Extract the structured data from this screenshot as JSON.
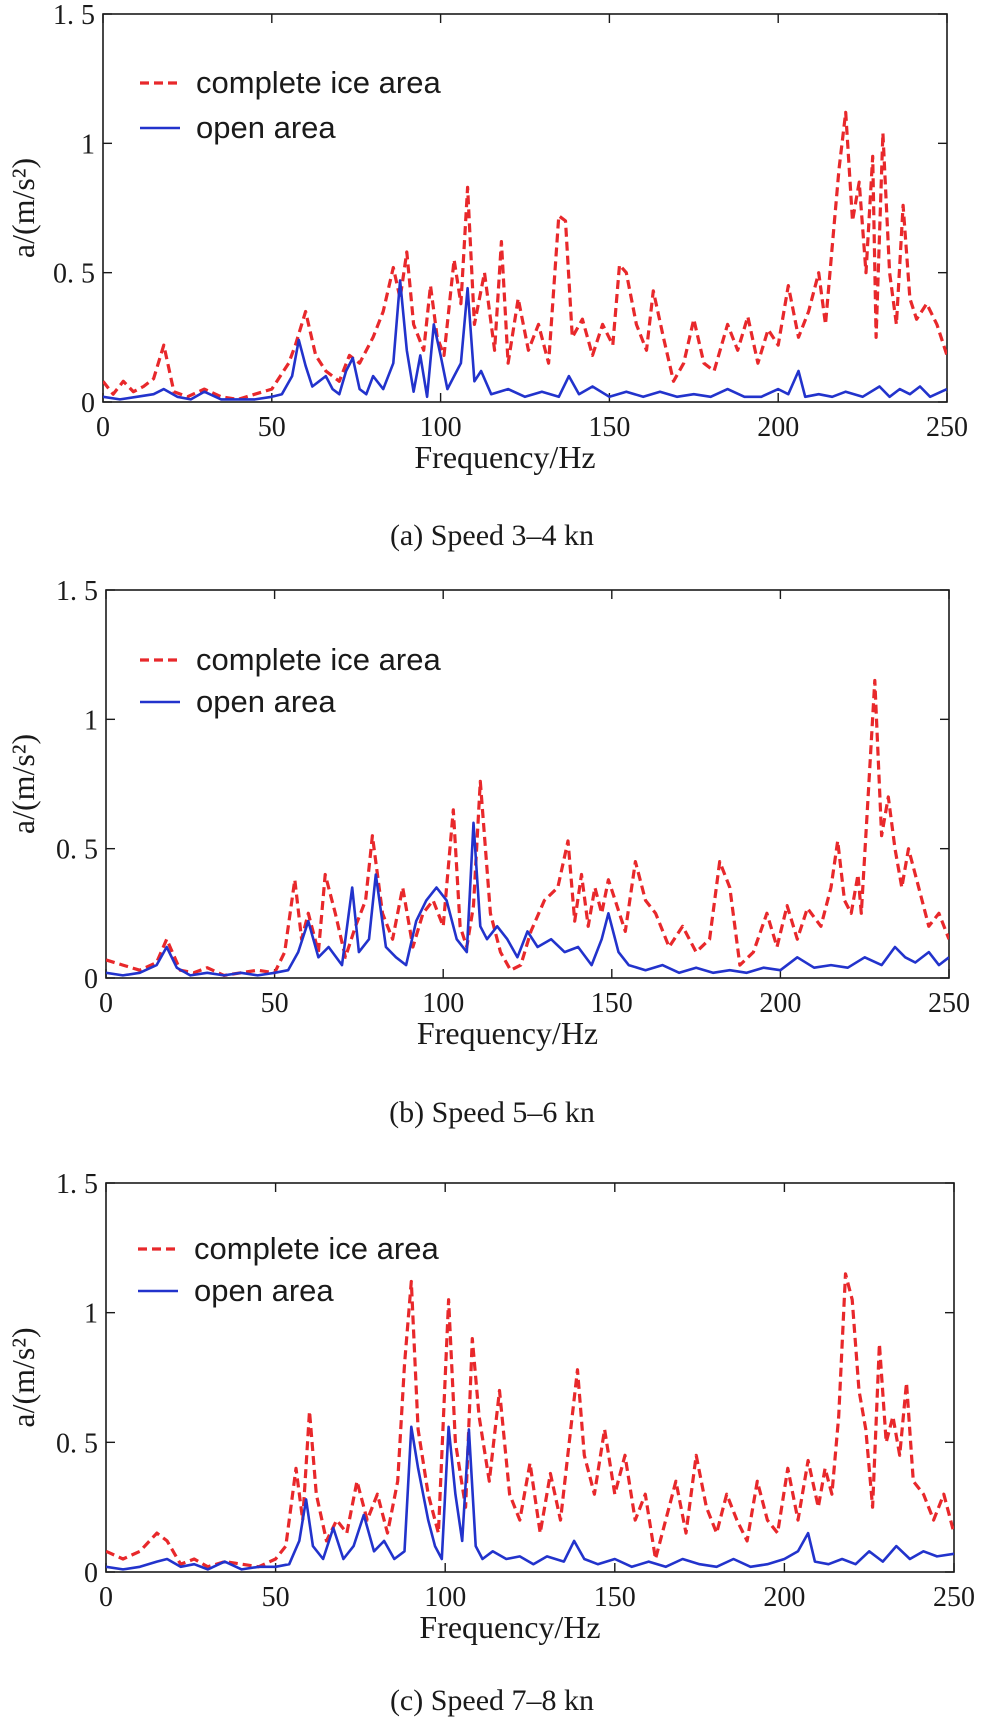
{
  "figure": {
    "panel_count": 3
  },
  "chart_data": [
    {
      "type": "line",
      "caption": "(a) Speed 3–4 kn",
      "xlabel": "Frequency/Hz",
      "ylabel": "a/(m/s²)",
      "xlim": [
        0,
        250
      ],
      "ylim": [
        0,
        1.5
      ],
      "xticks": [
        0,
        50,
        100,
        150,
        200,
        250
      ],
      "yticks": [
        0,
        0.5,
        1,
        1.5
      ],
      "ytick_labels": [
        "0",
        "0. 5",
        "1",
        "1. 5"
      ],
      "grid": false,
      "legend_position": "top-left",
      "series": [
        {
          "name": "complete ice area",
          "color": "#e8282b",
          "style": "dashed",
          "x": [
            0,
            3,
            6,
            9,
            12,
            15,
            18,
            21,
            25,
            30,
            35,
            40,
            45,
            50,
            55,
            57,
            60,
            63,
            66,
            70,
            73,
            76,
            80,
            83,
            86,
            88,
            90,
            92,
            95,
            97,
            99,
            101,
            104,
            106,
            108,
            110,
            113,
            116,
            118,
            120,
            123,
            126,
            129,
            132,
            135,
            137,
            139,
            142,
            145,
            148,
            151,
            153,
            155,
            158,
            161,
            163,
            166,
            169,
            172,
            175,
            178,
            181,
            185,
            188,
            191,
            194,
            197,
            200,
            203,
            206,
            209,
            212,
            214,
            216,
            218,
            220,
            222,
            224,
            226,
            228,
            229,
            231,
            233,
            235,
            237,
            239,
            241,
            244,
            247,
            250
          ],
          "values": [
            0.08,
            0.03,
            0.08,
            0.04,
            0.06,
            0.09,
            0.22,
            0.04,
            0.02,
            0.05,
            0.02,
            0.01,
            0.03,
            0.05,
            0.15,
            0.22,
            0.35,
            0.18,
            0.12,
            0.08,
            0.18,
            0.15,
            0.25,
            0.35,
            0.52,
            0.4,
            0.58,
            0.3,
            0.2,
            0.45,
            0.25,
            0.18,
            0.55,
            0.38,
            0.83,
            0.3,
            0.5,
            0.2,
            0.62,
            0.15,
            0.4,
            0.2,
            0.3,
            0.15,
            0.72,
            0.7,
            0.25,
            0.32,
            0.18,
            0.3,
            0.22,
            0.53,
            0.5,
            0.3,
            0.2,
            0.43,
            0.25,
            0.08,
            0.15,
            0.32,
            0.15,
            0.12,
            0.3,
            0.2,
            0.33,
            0.15,
            0.28,
            0.22,
            0.45,
            0.25,
            0.35,
            0.5,
            0.3,
            0.6,
            0.9,
            1.12,
            0.7,
            0.85,
            0.5,
            0.95,
            0.25,
            1.04,
            0.5,
            0.3,
            0.76,
            0.4,
            0.32,
            0.38,
            0.3,
            0.18
          ]
        },
        {
          "name": "open area",
          "color": "#2233cc",
          "style": "solid",
          "x": [
            0,
            5,
            10,
            15,
            18,
            22,
            26,
            30,
            35,
            40,
            45,
            50,
            53,
            56,
            58,
            60,
            62,
            64,
            66,
            68,
            70,
            72,
            74,
            76,
            78,
            80,
            83,
            86,
            88,
            90,
            92,
            94,
            96,
            98,
            100,
            102,
            104,
            106,
            108,
            110,
            112,
            115,
            120,
            125,
            130,
            135,
            138,
            141,
            145,
            150,
            155,
            160,
            165,
            170,
            175,
            180,
            185,
            190,
            195,
            200,
            203,
            206,
            208,
            212,
            216,
            220,
            225,
            230,
            233,
            236,
            239,
            242,
            245,
            250
          ],
          "values": [
            0.02,
            0.01,
            0.02,
            0.03,
            0.05,
            0.02,
            0.01,
            0.04,
            0.01,
            0.01,
            0.01,
            0.02,
            0.03,
            0.1,
            0.24,
            0.14,
            0.06,
            0.08,
            0.1,
            0.05,
            0.03,
            0.12,
            0.17,
            0.05,
            0.03,
            0.1,
            0.05,
            0.15,
            0.47,
            0.2,
            0.04,
            0.18,
            0.02,
            0.3,
            0.18,
            0.05,
            0.1,
            0.15,
            0.44,
            0.08,
            0.12,
            0.03,
            0.05,
            0.02,
            0.04,
            0.02,
            0.1,
            0.03,
            0.06,
            0.02,
            0.04,
            0.02,
            0.04,
            0.02,
            0.03,
            0.02,
            0.05,
            0.02,
            0.02,
            0.05,
            0.03,
            0.12,
            0.02,
            0.03,
            0.02,
            0.04,
            0.02,
            0.06,
            0.02,
            0.05,
            0.03,
            0.06,
            0.02,
            0.05
          ]
        }
      ]
    },
    {
      "type": "line",
      "caption": "(b) Speed 5–6 kn",
      "xlabel": "Frequency/Hz",
      "ylabel": "a/(m/s²)",
      "xlim": [
        0,
        250
      ],
      "ylim": [
        0,
        1.5
      ],
      "xticks": [
        0,
        50,
        100,
        150,
        200,
        250
      ],
      "yticks": [
        0,
        0.5,
        1,
        1.5
      ],
      "ytick_labels": [
        "0",
        "0. 5",
        "1",
        "1. 5"
      ],
      "grid": false,
      "legend_position": "top-left",
      "series": [
        {
          "name": "complete ice area",
          "color": "#e8282b",
          "style": "dashed",
          "x": [
            0,
            5,
            10,
            15,
            18,
            22,
            26,
            30,
            35,
            40,
            45,
            50,
            53,
            56,
            58,
            60,
            63,
            65,
            68,
            71,
            74,
            77,
            79,
            82,
            85,
            88,
            91,
            94,
            97,
            100,
            103,
            105,
            107,
            109,
            111,
            114,
            117,
            120,
            123,
            126,
            130,
            134,
            137,
            139,
            141,
            143,
            145,
            147,
            149,
            151,
            154,
            157,
            160,
            163,
            167,
            171,
            175,
            179,
            182,
            185,
            188,
            192,
            196,
            199,
            202,
            205,
            208,
            212,
            215,
            217,
            219,
            221,
            223,
            224,
            226,
            228,
            230,
            232,
            234,
            236,
            238,
            241,
            244,
            247,
            250
          ],
          "values": [
            0.07,
            0.05,
            0.03,
            0.06,
            0.15,
            0.03,
            0.02,
            0.04,
            0.01,
            0.02,
            0.03,
            0.02,
            0.1,
            0.38,
            0.15,
            0.25,
            0.1,
            0.4,
            0.25,
            0.08,
            0.2,
            0.3,
            0.55,
            0.25,
            0.15,
            0.35,
            0.12,
            0.25,
            0.3,
            0.2,
            0.65,
            0.2,
            0.12,
            0.28,
            0.76,
            0.25,
            0.1,
            0.03,
            0.05,
            0.18,
            0.3,
            0.35,
            0.53,
            0.22,
            0.4,
            0.2,
            0.35,
            0.25,
            0.38,
            0.3,
            0.18,
            0.45,
            0.3,
            0.25,
            0.12,
            0.2,
            0.1,
            0.15,
            0.45,
            0.35,
            0.05,
            0.1,
            0.25,
            0.12,
            0.28,
            0.15,
            0.27,
            0.2,
            0.35,
            0.53,
            0.3,
            0.25,
            0.4,
            0.25,
            0.7,
            1.15,
            0.55,
            0.7,
            0.5,
            0.35,
            0.5,
            0.35,
            0.2,
            0.25,
            0.15
          ]
        },
        {
          "name": "open area",
          "color": "#2233cc",
          "style": "solid",
          "x": [
            0,
            5,
            10,
            15,
            18,
            21,
            25,
            30,
            35,
            40,
            45,
            50,
            54,
            57,
            60,
            63,
            66,
            70,
            73,
            75,
            78,
            80,
            83,
            86,
            89,
            92,
            95,
            98,
            101,
            104,
            107,
            109,
            111,
            113,
            116,
            119,
            122,
            125,
            128,
            132,
            136,
            140,
            144,
            147,
            149,
            152,
            155,
            160,
            165,
            170,
            175,
            180,
            185,
            190,
            195,
            200,
            205,
            210,
            215,
            220,
            225,
            230,
            234,
            237,
            240,
            244,
            247,
            250
          ],
          "values": [
            0.02,
            0.01,
            0.02,
            0.05,
            0.12,
            0.04,
            0.01,
            0.02,
            0.01,
            0.02,
            0.01,
            0.02,
            0.03,
            0.1,
            0.22,
            0.08,
            0.12,
            0.05,
            0.35,
            0.1,
            0.15,
            0.4,
            0.12,
            0.08,
            0.05,
            0.22,
            0.3,
            0.35,
            0.3,
            0.15,
            0.1,
            0.6,
            0.2,
            0.15,
            0.2,
            0.15,
            0.08,
            0.18,
            0.12,
            0.15,
            0.1,
            0.12,
            0.05,
            0.15,
            0.25,
            0.1,
            0.05,
            0.03,
            0.05,
            0.02,
            0.04,
            0.02,
            0.03,
            0.02,
            0.04,
            0.03,
            0.08,
            0.04,
            0.05,
            0.04,
            0.08,
            0.05,
            0.12,
            0.08,
            0.06,
            0.1,
            0.05,
            0.08
          ]
        }
      ]
    },
    {
      "type": "line",
      "caption": "(c) Speed 7–8 kn",
      "xlabel": "Frequency/Hz",
      "ylabel": "a/(m/s²)",
      "xlim": [
        0,
        250
      ],
      "ylim": [
        0,
        1.5
      ],
      "xticks": [
        0,
        50,
        100,
        150,
        200,
        250
      ],
      "yticks": [
        0,
        0.5,
        1,
        1.5
      ],
      "ytick_labels": [
        "0",
        "0. 5",
        "1",
        "1. 5"
      ],
      "grid": false,
      "legend_position": "top-left",
      "series": [
        {
          "name": "complete ice area",
          "color": "#e8282b",
          "style": "dashed",
          "x": [
            0,
            5,
            10,
            15,
            18,
            22,
            26,
            30,
            35,
            40,
            45,
            50,
            53,
            56,
            58,
            60,
            62,
            65,
            68,
            71,
            74,
            77,
            80,
            83,
            86,
            88,
            90,
            92,
            95,
            98,
            101,
            103,
            106,
            108,
            110,
            113,
            116,
            119,
            122,
            125,
            128,
            131,
            134,
            137,
            139,
            141,
            144,
            147,
            150,
            153,
            156,
            159,
            162,
            165,
            168,
            171,
            174,
            177,
            180,
            183,
            186,
            189,
            192,
            195,
            198,
            201,
            204,
            207,
            210,
            212,
            214,
            216,
            218,
            220,
            222,
            224,
            226,
            228,
            230,
            232,
            234,
            236,
            238,
            241,
            244,
            247,
            250
          ],
          "values": [
            0.08,
            0.05,
            0.08,
            0.15,
            0.12,
            0.03,
            0.05,
            0.02,
            0.04,
            0.03,
            0.02,
            0.05,
            0.1,
            0.4,
            0.2,
            0.62,
            0.3,
            0.12,
            0.2,
            0.15,
            0.35,
            0.2,
            0.3,
            0.15,
            0.35,
            0.8,
            1.12,
            0.55,
            0.3,
            0.15,
            1.05,
            0.5,
            0.25,
            0.9,
            0.6,
            0.35,
            0.7,
            0.3,
            0.2,
            0.42,
            0.15,
            0.38,
            0.2,
            0.55,
            0.78,
            0.45,
            0.3,
            0.55,
            0.3,
            0.45,
            0.2,
            0.3,
            0.05,
            0.2,
            0.35,
            0.15,
            0.45,
            0.25,
            0.15,
            0.3,
            0.2,
            0.12,
            0.35,
            0.2,
            0.15,
            0.4,
            0.2,
            0.43,
            0.25,
            0.4,
            0.3,
            0.6,
            1.15,
            1.05,
            0.7,
            0.55,
            0.25,
            0.88,
            0.5,
            0.6,
            0.45,
            0.73,
            0.35,
            0.3,
            0.2,
            0.3,
            0.15
          ]
        },
        {
          "name": "open area",
          "color": "#2233cc",
          "style": "solid",
          "x": [
            0,
            5,
            10,
            15,
            18,
            22,
            26,
            30,
            35,
            40,
            45,
            50,
            54,
            57,
            59,
            61,
            64,
            67,
            70,
            73,
            76,
            79,
            82,
            85,
            88,
            90,
            92,
            95,
            97,
            99,
            101,
            103,
            105,
            107,
            109,
            111,
            114,
            118,
            122,
            126,
            130,
            135,
            138,
            141,
            145,
            150,
            155,
            160,
            165,
            170,
            175,
            180,
            185,
            190,
            195,
            200,
            204,
            207,
            209,
            213,
            217,
            221,
            225,
            229,
            233,
            237,
            241,
            245,
            250
          ],
          "values": [
            0.02,
            0.01,
            0.02,
            0.04,
            0.05,
            0.02,
            0.03,
            0.01,
            0.04,
            0.01,
            0.02,
            0.02,
            0.03,
            0.12,
            0.28,
            0.1,
            0.05,
            0.17,
            0.05,
            0.1,
            0.22,
            0.08,
            0.12,
            0.05,
            0.08,
            0.56,
            0.4,
            0.2,
            0.1,
            0.05,
            0.56,
            0.3,
            0.12,
            0.55,
            0.1,
            0.05,
            0.08,
            0.05,
            0.06,
            0.03,
            0.06,
            0.04,
            0.12,
            0.05,
            0.03,
            0.05,
            0.02,
            0.04,
            0.02,
            0.05,
            0.03,
            0.02,
            0.05,
            0.02,
            0.03,
            0.05,
            0.08,
            0.15,
            0.04,
            0.03,
            0.05,
            0.03,
            0.08,
            0.04,
            0.1,
            0.05,
            0.08,
            0.06,
            0.07
          ]
        }
      ]
    }
  ]
}
